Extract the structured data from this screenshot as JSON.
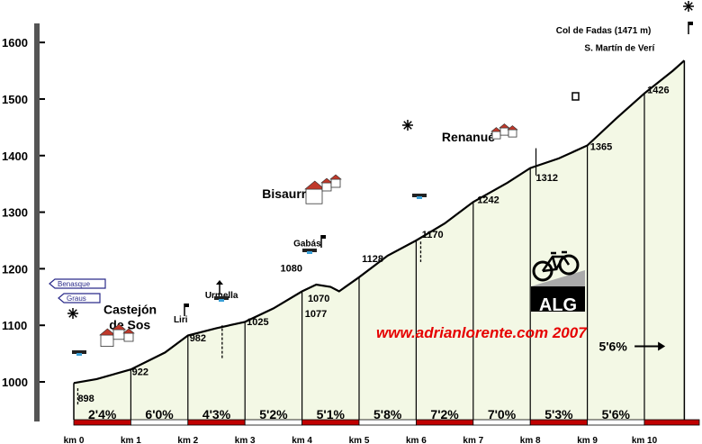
{
  "chart_data": {
    "type": "area",
    "y_ticks": [
      1000,
      1100,
      1200,
      1300,
      1400,
      1500,
      1600
    ],
    "ylim": [
      930,
      1640
    ],
    "xlim": [
      0,
      10.7
    ],
    "x_ticks": [
      {
        "km": 0,
        "label": "km 0"
      },
      {
        "km": 1,
        "label": "km 1"
      },
      {
        "km": 2,
        "label": "km 2"
      },
      {
        "km": 3,
        "label": "km 3"
      },
      {
        "km": 4,
        "label": "km 4"
      },
      {
        "km": 5,
        "label": "km 5"
      },
      {
        "km": 6,
        "label": "km 6"
      },
      {
        "km": 7,
        "label": "km 7"
      },
      {
        "km": 8,
        "label": "km 8"
      },
      {
        "km": 9,
        "label": "km 9"
      },
      {
        "km": 10,
        "label": "km 10"
      }
    ],
    "profile": [
      {
        "km": 0,
        "alt": 998
      },
      {
        "km": 0.4,
        "alt": 1005
      },
      {
        "km": 1.0,
        "alt": 1022
      },
      {
        "km": 1.6,
        "alt": 1052
      },
      {
        "km": 2.0,
        "alt": 1082
      },
      {
        "km": 2.5,
        "alt": 1095
      },
      {
        "km": 3.0,
        "alt": 1106
      },
      {
        "km": 3.5,
        "alt": 1130
      },
      {
        "km": 4.0,
        "alt": 1160
      },
      {
        "km": 4.25,
        "alt": 1172
      },
      {
        "km": 4.5,
        "alt": 1168
      },
      {
        "km": 4.65,
        "alt": 1160
      },
      {
        "km": 5.0,
        "alt": 1185
      },
      {
        "km": 5.5,
        "alt": 1223
      },
      {
        "km": 6.0,
        "alt": 1250
      },
      {
        "km": 6.5,
        "alt": 1280
      },
      {
        "km": 7.0,
        "alt": 1318
      },
      {
        "km": 7.6,
        "alt": 1352
      },
      {
        "km": 8.0,
        "alt": 1378
      },
      {
        "km": 8.5,
        "alt": 1395
      },
      {
        "km": 9.0,
        "alt": 1418
      },
      {
        "km": 9.5,
        "alt": 1465
      },
      {
        "km": 10.0,
        "alt": 1510
      },
      {
        "km": 10.5,
        "alt": 1550
      },
      {
        "km": 10.7,
        "alt": 1568
      }
    ],
    "gradients": [
      {
        "km": 0,
        "label": "2'4%"
      },
      {
        "km": 1,
        "label": "6'0%"
      },
      {
        "km": 2,
        "label": "4'3%"
      },
      {
        "km": 3,
        "label": "5'2%"
      },
      {
        "km": 4,
        "label": "5'1%"
      },
      {
        "km": 5,
        "label": "5'8%"
      },
      {
        "km": 6,
        "label": "7'2%"
      },
      {
        "km": 7,
        "label": "7'0%"
      },
      {
        "km": 8,
        "label": "5'3%"
      },
      {
        "km": 9,
        "label": "5'6%"
      }
    ],
    "gradient_extra": {
      "label": "5'6%",
      "km": 9.45,
      "alt": 1055
    },
    "marker_alts": [
      {
        "label": "898",
        "km": 0.07,
        "alt": 965
      },
      {
        "label": "922",
        "km": 1.02,
        "alt": 1012
      },
      {
        "label": "982",
        "km": 2.03,
        "alt": 1072
      },
      {
        "label": "1025",
        "km": 3.03,
        "alt": 1100
      },
      {
        "label": "1077",
        "km": 4.05,
        "alt": 1115
      },
      {
        "label": "1070",
        "km": 4.1,
        "alt": 1142
      },
      {
        "label": "1080",
        "km": 3.62,
        "alt": 1195
      },
      {
        "label": "1128",
        "km": 5.05,
        "alt": 1212
      },
      {
        "label": "1170",
        "km": 6.1,
        "alt": 1255
      },
      {
        "label": "1242",
        "km": 7.07,
        "alt": 1316
      },
      {
        "label": "1312",
        "km": 8.1,
        "alt": 1355
      },
      {
        "label": "1365",
        "km": 9.05,
        "alt": 1410
      },
      {
        "label": "1426",
        "km": 10.05,
        "alt": 1510
      }
    ],
    "places": [
      {
        "label": "Castejón",
        "km": 0.52,
        "alt": 1120,
        "size": 14
      },
      {
        "label": "de Sos",
        "km": 0.62,
        "alt": 1093,
        "size": 14
      },
      {
        "label": "Liri",
        "km": 1.75,
        "alt": 1105,
        "size": 10
      },
      {
        "label": "Urmella",
        "km": 2.3,
        "alt": 1148,
        "size": 10
      },
      {
        "label": "Bisaurri",
        "km": 3.3,
        "alt": 1325,
        "size": 14
      },
      {
        "label": "Gabás",
        "km": 3.85,
        "alt": 1240,
        "size": 10
      },
      {
        "label": "Renanué",
        "km": 6.45,
        "alt": 1425,
        "size": 14
      },
      {
        "label": "Col de Fadas (1471 m)",
        "km": 8.45,
        "alt": 1616,
        "size": 10
      },
      {
        "label": "S. Martín de Verí",
        "km": 8.95,
        "alt": 1585,
        "size": 10
      }
    ],
    "signs": [
      {
        "label": "Benasque",
        "km": -0.42,
        "alt": 1135
      },
      {
        "label": "Graus",
        "km": -0.25,
        "alt": 1106
      }
    ],
    "website": "www.adrianlorente.com 2007",
    "logo_text": "ALG",
    "colors": {
      "fill": "#f3f8e5",
      "line": "#000000",
      "band_red": "#c00000",
      "website": "#e60000"
    }
  }
}
